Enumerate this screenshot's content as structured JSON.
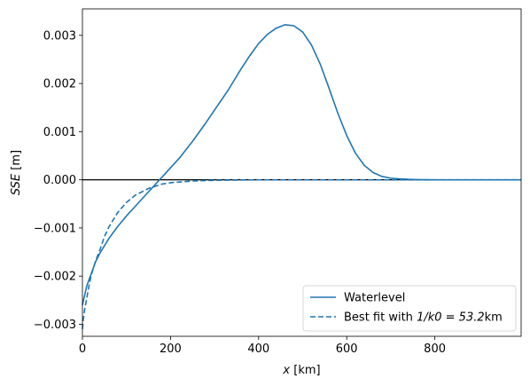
{
  "chart_data": {
    "type": "line",
    "title": "",
    "xlabel": "x [km]",
    "ylabel": "SSE [m]",
    "xlim": [
      0,
      996
    ],
    "ylim": [
      -0.00325,
      0.00355
    ],
    "xticks": [
      0,
      200,
      400,
      600,
      800
    ],
    "xtick_labels": [
      "0",
      "200",
      "400",
      "600",
      "800"
    ],
    "yticks": [
      -0.003,
      -0.002,
      -0.001,
      0.0,
      0.001,
      0.002,
      0.003
    ],
    "ytick_labels": [
      "−0.003",
      "−0.002",
      "−0.001",
      "0.000",
      "0.001",
      "0.002",
      "0.003"
    ],
    "grid": false,
    "legend_position": "lower-right",
    "reference_line": {
      "y": 0,
      "color": "#000000"
    },
    "series": [
      {
        "name": "Waterlevel",
        "style": "solid",
        "color": "#1f77b4",
        "x": [
          0,
          5,
          10,
          20,
          30,
          40,
          60,
          80,
          100,
          120,
          140,
          160,
          170,
          180,
          200,
          220,
          250,
          280,
          300,
          330,
          360,
          380,
          400,
          420,
          440,
          460,
          480,
          500,
          520,
          540,
          560,
          580,
          600,
          620,
          640,
          660,
          680,
          700,
          720,
          740,
          760,
          800,
          900,
          996
        ],
        "y": [
          -0.0026,
          -0.0024,
          -0.0022,
          -0.00195,
          -0.0017,
          -0.00152,
          -0.00122,
          -0.00097,
          -0.00075,
          -0.00055,
          -0.00035,
          -0.00015,
          -5e-05,
          5e-05,
          0.00025,
          0.00045,
          0.0008,
          0.00118,
          0.00145,
          0.00185,
          0.0023,
          0.00258,
          0.00283,
          0.00302,
          0.00315,
          0.00322,
          0.0032,
          0.00307,
          0.0028,
          0.0024,
          0.0019,
          0.00138,
          0.00092,
          0.00055,
          0.0003,
          0.00015,
          7e-05,
          3.5e-05,
          2e-05,
          1e-05,
          5e-06,
          0.0,
          0.0,
          0.0
        ]
      },
      {
        "name": "Best fit with 1/k0=53.2km",
        "legend_prefix": "Best fit with ",
        "legend_math": "1/k0 = 53.2",
        "legend_suffix": "km",
        "style": "dashed",
        "color": "#1f77b4",
        "x": [
          0,
          2,
          5,
          10,
          15,
          20,
          30,
          40,
          50,
          60,
          80,
          100,
          120,
          150,
          180,
          200,
          250,
          300,
          400,
          500,
          600,
          700,
          800,
          900,
          996
        ],
        "y": [
          -0.0031,
          -0.0029,
          -0.0027,
          -0.00245,
          -0.0022,
          -0.00198,
          -0.00168,
          -0.00145,
          -0.00118,
          -0.00098,
          -0.00068,
          -0.00047,
          -0.00032,
          -0.00018,
          -9e-05,
          -6e-05,
          -2.5e-05,
          -1e-05,
          0.0,
          0.0,
          0.0,
          0.0,
          0.0,
          0.0,
          0.0
        ]
      }
    ]
  }
}
